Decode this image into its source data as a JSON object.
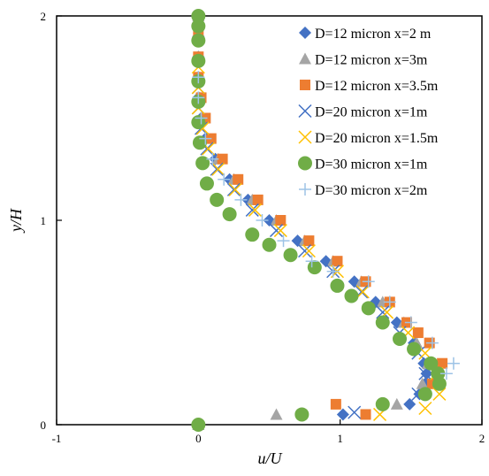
{
  "chart_data": {
    "type": "scatter",
    "title": "",
    "xlabel": "u/U",
    "ylabel": "y/H",
    "xlim": [
      -1,
      2
    ],
    "ylim": [
      0,
      2
    ],
    "x_ticks": [
      "-1",
      "0",
      "1",
      "2"
    ],
    "y_ticks": [
      "0",
      "1",
      "2"
    ],
    "grid": false,
    "legend_position": "top-right",
    "series": [
      {
        "name": "D=12 micron x=2 m",
        "marker": "diamond",
        "color": "#4472C4",
        "points": [
          [
            0.0,
            0.0
          ],
          [
            1.02,
            0.05
          ],
          [
            1.49,
            0.1
          ],
          [
            1.56,
            0.15
          ],
          [
            1.6,
            0.2
          ],
          [
            1.61,
            0.25
          ],
          [
            1.59,
            0.3
          ],
          [
            1.52,
            0.4
          ],
          [
            1.4,
            0.5
          ],
          [
            1.25,
            0.6
          ],
          [
            1.1,
            0.7
          ],
          [
            0.9,
            0.8
          ],
          [
            0.7,
            0.9
          ],
          [
            0.5,
            1.0
          ],
          [
            0.35,
            1.1
          ],
          [
            0.22,
            1.2
          ],
          [
            0.12,
            1.3
          ],
          [
            0.05,
            1.4
          ],
          [
            0.02,
            1.5
          ],
          [
            0.0,
            1.6
          ],
          [
            0.0,
            1.7
          ],
          [
            0.0,
            1.8
          ],
          [
            0.0,
            1.9
          ],
          [
            0.0,
            2.0
          ]
        ]
      },
      {
        "name": "D=12 micron x=3m",
        "marker": "triangle",
        "color": "#A5A5A5",
        "points": [
          [
            0.0,
            0.0
          ],
          [
            0.55,
            0.05
          ],
          [
            1.4,
            0.1
          ],
          [
            1.58,
            0.2
          ],
          [
            1.62,
            0.3
          ],
          [
            1.54,
            0.4
          ],
          [
            1.45,
            0.5
          ],
          [
            1.3,
            0.6
          ],
          [
            1.15,
            0.7
          ],
          [
            0.95,
            0.8
          ],
          [
            0.75,
            0.9
          ],
          [
            0.55,
            1.0
          ],
          [
            0.38,
            1.1
          ],
          [
            0.25,
            1.2
          ],
          [
            0.14,
            1.3
          ],
          [
            0.07,
            1.4
          ],
          [
            0.03,
            1.5
          ],
          [
            0.01,
            1.6
          ],
          [
            0.0,
            1.7
          ],
          [
            0.0,
            1.8
          ],
          [
            0.0,
            1.9
          ],
          [
            0.0,
            2.0
          ]
        ]
      },
      {
        "name": "D=12 micron x=3.5m",
        "marker": "square",
        "color": "#ED7D31",
        "points": [
          [
            1.18,
            0.05
          ],
          [
            0.97,
            0.1
          ],
          [
            1.65,
            0.2
          ],
          [
            1.72,
            0.3
          ],
          [
            1.63,
            0.4
          ],
          [
            1.55,
            0.45
          ],
          [
            1.47,
            0.5
          ],
          [
            1.35,
            0.6
          ],
          [
            1.18,
            0.7
          ],
          [
            0.98,
            0.8
          ],
          [
            0.78,
            0.9
          ],
          [
            0.58,
            1.0
          ],
          [
            0.42,
            1.1
          ],
          [
            0.28,
            1.2
          ],
          [
            0.17,
            1.3
          ],
          [
            0.09,
            1.4
          ],
          [
            0.05,
            1.5
          ],
          [
            0.02,
            1.6
          ],
          [
            0.0,
            1.7
          ],
          [
            0.0,
            1.8
          ],
          [
            0.0,
            1.9
          ]
        ]
      },
      {
        "name": "D=20 micron x=1m",
        "marker": "x",
        "color": "#4472C4",
        "points": [
          [
            1.1,
            0.06
          ],
          [
            1.55,
            0.15
          ],
          [
            1.6,
            0.25
          ],
          [
            1.55,
            0.35
          ],
          [
            1.42,
            0.45
          ],
          [
            1.3,
            0.55
          ],
          [
            1.15,
            0.65
          ],
          [
            0.95,
            0.75
          ],
          [
            0.75,
            0.85
          ],
          [
            0.55,
            0.95
          ],
          [
            0.38,
            1.05
          ],
          [
            0.25,
            1.15
          ],
          [
            0.13,
            1.25
          ],
          [
            0.06,
            1.35
          ],
          [
            0.02,
            1.45
          ],
          [
            0.0,
            1.55
          ],
          [
            0.0,
            1.65
          ]
        ]
      },
      {
        "name": "D=20 micron x=1.5m",
        "marker": "x",
        "color": "#FFC000",
        "points": [
          [
            1.28,
            0.05
          ],
          [
            1.6,
            0.08
          ],
          [
            1.7,
            0.15
          ],
          [
            1.68,
            0.25
          ],
          [
            1.6,
            0.35
          ],
          [
            1.48,
            0.45
          ],
          [
            1.33,
            0.55
          ],
          [
            1.16,
            0.65
          ],
          [
            0.98,
            0.75
          ],
          [
            0.78,
            0.85
          ],
          [
            0.58,
            0.95
          ],
          [
            0.4,
            1.05
          ],
          [
            0.26,
            1.15
          ],
          [
            0.14,
            1.25
          ],
          [
            0.07,
            1.35
          ],
          [
            0.03,
            1.45
          ],
          [
            0.0,
            1.55
          ],
          [
            0.0,
            1.65
          ],
          [
            0.0,
            1.75
          ]
        ]
      },
      {
        "name": "D=30 micron x=1m",
        "marker": "circle",
        "color": "#70AD47",
        "points": [
          [
            0.0,
            0.0
          ],
          [
            0.73,
            0.05
          ],
          [
            1.3,
            0.1
          ],
          [
            1.6,
            0.15
          ],
          [
            1.7,
            0.2
          ],
          [
            1.69,
            0.25
          ],
          [
            1.64,
            0.3
          ],
          [
            1.52,
            0.37
          ],
          [
            1.42,
            0.42
          ],
          [
            1.3,
            0.5
          ],
          [
            1.2,
            0.57
          ],
          [
            1.08,
            0.63
          ],
          [
            0.98,
            0.68
          ],
          [
            0.82,
            0.77
          ],
          [
            0.65,
            0.83
          ],
          [
            0.5,
            0.88
          ],
          [
            0.38,
            0.93
          ],
          [
            0.22,
            1.03
          ],
          [
            0.13,
            1.1
          ],
          [
            0.06,
            1.18
          ],
          [
            0.03,
            1.28
          ],
          [
            0.01,
            1.38
          ],
          [
            0.0,
            1.48
          ],
          [
            0.0,
            1.58
          ],
          [
            0.0,
            1.68
          ],
          [
            0.0,
            1.78
          ],
          [
            0.0,
            1.88
          ],
          [
            0.0,
            1.95
          ],
          [
            0.0,
            2.0
          ]
        ]
      },
      {
        "name": "D=30 micron x=2m",
        "marker": "plus",
        "color": "#9DC3E6",
        "points": [
          [
            1.75,
            0.25
          ],
          [
            1.8,
            0.3
          ],
          [
            1.65,
            0.4
          ],
          [
            1.5,
            0.5
          ],
          [
            1.35,
            0.6
          ],
          [
            1.2,
            0.7
          ],
          [
            0.95,
            0.75
          ],
          [
            0.8,
            0.8
          ],
          [
            0.6,
            0.9
          ],
          [
            0.45,
            1.0
          ],
          [
            0.3,
            1.1
          ],
          [
            0.18,
            1.2
          ],
          [
            0.1,
            1.3
          ],
          [
            0.05,
            1.4
          ],
          [
            0.02,
            1.5
          ],
          [
            0.0,
            1.6
          ],
          [
            0.0,
            1.7
          ]
        ]
      }
    ]
  }
}
